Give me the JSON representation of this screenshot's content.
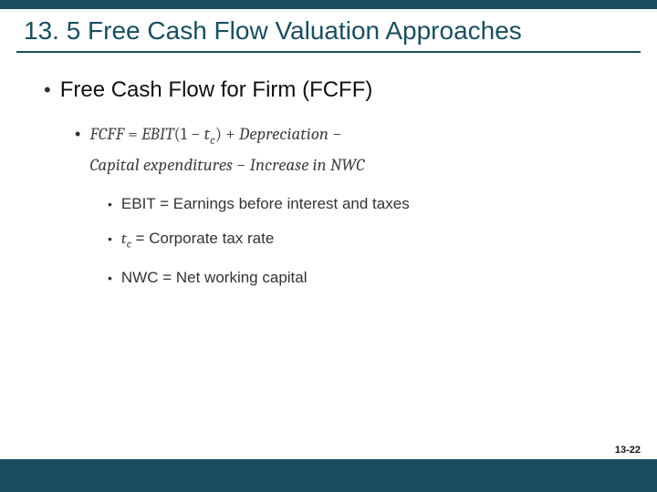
{
  "colors": {
    "bar": "#1a4e5f",
    "title": "#1a4e5f",
    "rule": "#1a4e5f",
    "accent": "#8a2a2a"
  },
  "title": "13. 5 Free Cash Flow Valuation Approaches",
  "heading": "Free Cash Flow for Firm (FCFF)",
  "formula": {
    "line1_pre": "FCFF",
    "line1_eq": " =  ",
    "line1_ebit": "EBIT",
    "line1_paren_open": "(1 − ",
    "line1_tc_t": "t",
    "line1_tc_c": "c",
    "line1_paren_close": ") + ",
    "line1_dep": "Depreciation",
    "line1_minus": " −",
    "line2_capex": "Capital expenditures",
    "line2_minus": " − ",
    "line2_inc": "Increase in NWC"
  },
  "defs": {
    "ebit": "EBIT = Earnings before interest and taxes",
    "tc_t": "t",
    "tc_c": "c",
    "tc_rest": " = Corporate tax rate",
    "nwc": "NWC = Net working capital"
  },
  "page": "13-22"
}
